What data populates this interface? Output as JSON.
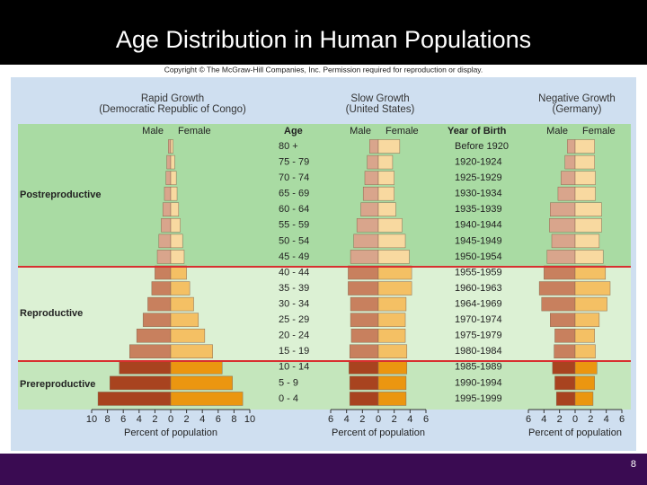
{
  "title": "Age Distribution in Human Populations",
  "copyright": "Copyright © The McGraw-Hill Companies, Inc. Permission required for reproduction or display.",
  "page_number": "8",
  "zones": [
    "Postreproductive",
    "Reproductive",
    "Prereproductive"
  ],
  "chart_data": [
    {
      "type": "pyramid",
      "title": "Rapid Growth",
      "subtitle": "(Democratic Republic of Congo)",
      "category_label": "Age",
      "categories": [
        "80 +",
        "75 - 79",
        "70 - 74",
        "65 - 69",
        "60 - 64",
        "55 - 59",
        "50 - 54",
        "45 - 49",
        "40 - 44",
        "35 - 39",
        "30 - 34",
        "25 - 29",
        "20 - 24",
        "15 - 19",
        "10 - 14",
        "5 - 9",
        "0 - 4"
      ],
      "series": [
        {
          "name": "Male",
          "colors": [
            "#d9a58c",
            "#c8805e",
            "#a8431f"
          ],
          "values": [
            0.3,
            0.5,
            0.6,
            0.8,
            1.0,
            1.2,
            1.5,
            1.7,
            2.0,
            2.4,
            2.9,
            3.5,
            4.3,
            5.2,
            6.5,
            7.7,
            9.2
          ]
        },
        {
          "name": "Female",
          "colors": [
            "#f8d9a0",
            "#f4c064",
            "#eb9610"
          ],
          "values": [
            0.3,
            0.5,
            0.7,
            0.8,
            1.0,
            1.2,
            1.5,
            1.7,
            2.0,
            2.4,
            2.9,
            3.5,
            4.3,
            5.3,
            6.5,
            7.8,
            9.1
          ]
        }
      ],
      "xlim": [
        0,
        10
      ],
      "xticks": [
        0,
        2,
        4,
        6,
        8,
        10
      ],
      "mirrored": true,
      "xlabel": "Percent of population"
    },
    {
      "type": "pyramid",
      "title": "Slow Growth",
      "subtitle": "(United States)",
      "category_label": "Year of Birth",
      "categories": [
        "Before 1920",
        "1920-1924",
        "1925-1929",
        "1930-1934",
        "1935-1939",
        "1940-1944",
        "1945-1949",
        "1950-1954",
        "1955-1959",
        "1960-1963",
        "1964-1969",
        "1970-1974",
        "1975-1979",
        "1980-1984",
        "1985-1989",
        "1990-1994",
        "1995-1999"
      ],
      "series": [
        {
          "name": "Male",
          "colors": [
            "#d9a58c",
            "#c8805e",
            "#a8431f"
          ],
          "values": [
            1.1,
            1.4,
            1.7,
            1.9,
            2.2,
            2.7,
            3.1,
            3.5,
            3.8,
            3.8,
            3.5,
            3.5,
            3.4,
            3.6,
            3.7,
            3.6,
            3.6
          ]
        },
        {
          "name": "Female",
          "colors": [
            "#f8d9a0",
            "#f4c064",
            "#eb9610"
          ],
          "values": [
            2.7,
            1.8,
            2.0,
            2.0,
            2.2,
            3.0,
            3.4,
            3.9,
            4.2,
            4.2,
            3.5,
            3.4,
            3.4,
            3.6,
            3.6,
            3.5,
            3.5
          ]
        }
      ],
      "xlim": [
        0,
        6
      ],
      "xticks": [
        0,
        2,
        4,
        6
      ],
      "mirrored": true,
      "xlabel": "Percent of population"
    },
    {
      "type": "pyramid",
      "title": "Negative Growth",
      "subtitle": "(Germany)",
      "series": [
        {
          "name": "Male",
          "colors": [
            "#d9a58c",
            "#c8805e",
            "#a8431f"
          ],
          "values": [
            1.0,
            1.3,
            1.8,
            2.2,
            3.2,
            3.3,
            3.0,
            3.6,
            4.0,
            4.6,
            4.3,
            3.2,
            2.6,
            2.7,
            2.9,
            2.6,
            2.4
          ]
        },
        {
          "name": "Female",
          "colors": [
            "#f8d9a0",
            "#f4c064",
            "#eb9610"
          ],
          "values": [
            2.5,
            2.5,
            2.6,
            2.6,
            3.4,
            3.4,
            3.1,
            3.6,
            3.9,
            4.5,
            4.1,
            3.1,
            2.5,
            2.6,
            2.8,
            2.5,
            2.3
          ]
        }
      ],
      "xlim": [
        0,
        6
      ],
      "xticks": [
        0,
        2,
        4,
        6
      ],
      "mirrored": true,
      "xlabel": "Percent of population"
    }
  ]
}
